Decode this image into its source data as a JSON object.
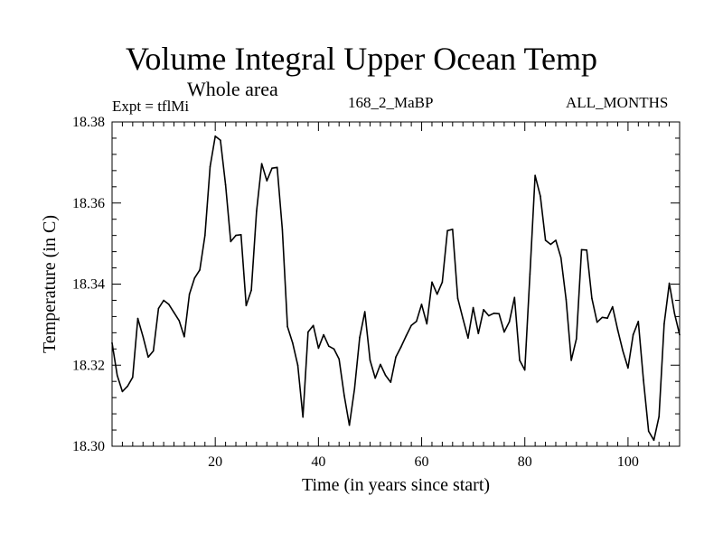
{
  "chart_data": {
    "type": "line",
    "title": "Volume Integral Upper Ocean Temp",
    "subtitle": "Whole area",
    "annotations": {
      "left": "Expt = tflMi",
      "center": "168_2_MaBP",
      "right": "ALL_MONTHS"
    },
    "xlabel": "Time (in years since start)",
    "ylabel": "Temperature (in C)",
    "xlim": [
      0,
      110
    ],
    "ylim": [
      18.3,
      18.38
    ],
    "x_major_ticks": [
      20,
      40,
      60,
      80,
      100
    ],
    "x_tick_labels": [
      "20",
      "40",
      "60",
      "80",
      "100"
    ],
    "y_major_ticks": [
      18.3,
      18.32,
      18.34,
      18.36,
      18.38
    ],
    "y_tick_labels": [
      "18.30",
      "18.32",
      "18.34",
      "18.36",
      "18.38"
    ],
    "grid": false,
    "series": [
      {
        "name": "Volume Integral Upper Ocean Temp",
        "x": [
          0,
          1,
          2,
          3,
          4,
          5,
          6,
          7,
          8,
          9,
          10,
          11,
          12,
          13,
          14,
          15,
          16,
          17,
          18,
          19,
          20,
          21,
          22,
          23,
          24,
          25,
          26,
          27,
          28,
          29,
          30,
          31,
          32,
          33,
          34,
          35,
          36,
          37,
          38,
          39,
          40,
          41,
          42,
          43,
          44,
          45,
          46,
          47,
          48,
          49,
          50,
          51,
          52,
          53,
          54,
          55,
          56,
          57,
          58,
          59,
          60,
          61,
          62,
          63,
          64,
          65,
          66,
          67,
          68,
          69,
          70,
          71,
          72,
          73,
          74,
          75,
          76,
          77,
          78,
          79,
          80,
          81,
          82,
          83,
          84,
          85,
          86,
          87,
          88,
          89,
          90,
          91,
          92,
          93,
          94,
          95,
          96,
          97,
          98,
          99,
          100,
          101,
          102,
          103,
          104,
          105,
          106,
          107,
          108,
          109,
          110
        ],
        "values": [
          18.3255,
          18.3175,
          18.3135,
          18.3148,
          18.317,
          18.3315,
          18.327,
          18.322,
          18.3235,
          18.334,
          18.336,
          18.335,
          18.333,
          18.331,
          18.327,
          18.3375,
          18.3415,
          18.3435,
          18.352,
          18.369,
          18.3765,
          18.3755,
          18.3645,
          18.3505,
          18.352,
          18.3522,
          18.3347,
          18.3385,
          18.358,
          18.3697,
          18.3655,
          18.3686,
          18.3688,
          18.3535,
          18.3295,
          18.3255,
          18.32,
          18.3072,
          18.3282,
          18.3298,
          18.3242,
          18.3275,
          18.3247,
          18.324,
          18.3215,
          18.3125,
          18.3052,
          18.3142,
          18.3268,
          18.3332,
          18.3212,
          18.3168,
          18.3202,
          18.3175,
          18.3158,
          18.322,
          18.3245,
          18.3272,
          18.3298,
          18.3308,
          18.335,
          18.3302,
          18.3405,
          18.3375,
          18.3405,
          18.3532,
          18.3535,
          18.3365,
          18.3315,
          18.3267,
          18.3342,
          18.3278,
          18.3337,
          18.3322,
          18.3328,
          18.3327,
          18.3282,
          18.3307,
          18.3367,
          18.3212,
          18.3188,
          18.3425,
          18.3668,
          18.3617,
          18.3508,
          18.3498,
          18.3508,
          18.3465,
          18.3362,
          18.3212,
          18.3265,
          18.3485,
          18.3484,
          18.3365,
          18.3306,
          18.3318,
          18.3316,
          18.3344,
          18.3287,
          18.3235,
          18.3193,
          18.3275,
          18.3308,
          18.3163,
          18.3037,
          18.3015,
          18.3073,
          18.3302,
          18.3402,
          18.3328,
          18.3275
        ]
      }
    ]
  }
}
